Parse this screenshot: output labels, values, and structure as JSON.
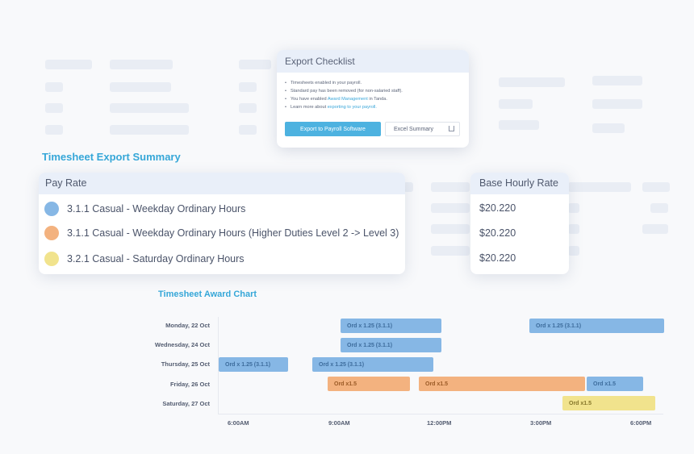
{
  "checklist": {
    "title": "Export Checklist",
    "items": [
      {
        "pre": "Timesheets enabled in your payroll.",
        "link": "",
        "post": ""
      },
      {
        "pre": "Standard pay has been removed (for non-salaried staff).",
        "link": "",
        "post": ""
      },
      {
        "pre": "You have enabled ",
        "link": "Award Management",
        "post": " in Tanda."
      },
      {
        "pre": "Learn more about ",
        "link": "exporting to your payroll.",
        "post": ""
      }
    ],
    "export_button": "Export to Payroll Software",
    "excel_button": "Excel Summary",
    "excel_icon": "download-icon"
  },
  "summary": {
    "title": "Timesheet Export Summary",
    "pay_rate_header": "Pay Rate",
    "hourly_header": "Base Hourly Rate",
    "rows": [
      {
        "label": "3.1.1 Casual - Weekday Ordinary Hours",
        "rate": "$20.220",
        "color": "#86b7e5"
      },
      {
        "label": "3.1.1 Casual - Weekday Ordinary Hours (Higher Duties Level 2 -> Level 3)",
        "rate": "$20.220",
        "color": "#f3b27f"
      },
      {
        "label": "3.2.1 Casual - Saturday Ordinary Hours",
        "rate": "$20.220",
        "color": "#f1e38d"
      }
    ]
  },
  "chart": {
    "title": "Timesheet Award Chart",
    "days": [
      "Monday, 22 Oct",
      "Wednesday, 24 Oct",
      "Thursday, 25 Oct",
      "Friday, 26 Oct",
      "Saturday, 27 Oct"
    ],
    "ticks": [
      "6:00AM",
      "9:00AM",
      "12:00PM",
      "3:00PM",
      "6:00PM"
    ],
    "bars": [
      {
        "row": 0,
        "label": "Ord x 1.25 (3.1.1)",
        "color": "blue"
      },
      {
        "row": 0,
        "label": "Ord x 1.25 (3.1.1)",
        "color": "blue"
      },
      {
        "row": 1,
        "label": "Ord x 1.25 (3.1.1)",
        "color": "blue"
      },
      {
        "row": 2,
        "label": "Ord x 1.25 (3.1.1)",
        "color": "blue"
      },
      {
        "row": 2,
        "label": "Ord x 1.25 (3.1.1)",
        "color": "blue"
      },
      {
        "row": 3,
        "label": "Ord x1.5",
        "color": "orange"
      },
      {
        "row": 3,
        "label": "Ord x1.5",
        "color": "orange"
      },
      {
        "row": 3,
        "label": "Ord x1.5",
        "color": "blue"
      },
      {
        "row": 4,
        "label": "Ord x1.5",
        "color": "yellow"
      }
    ]
  }
}
